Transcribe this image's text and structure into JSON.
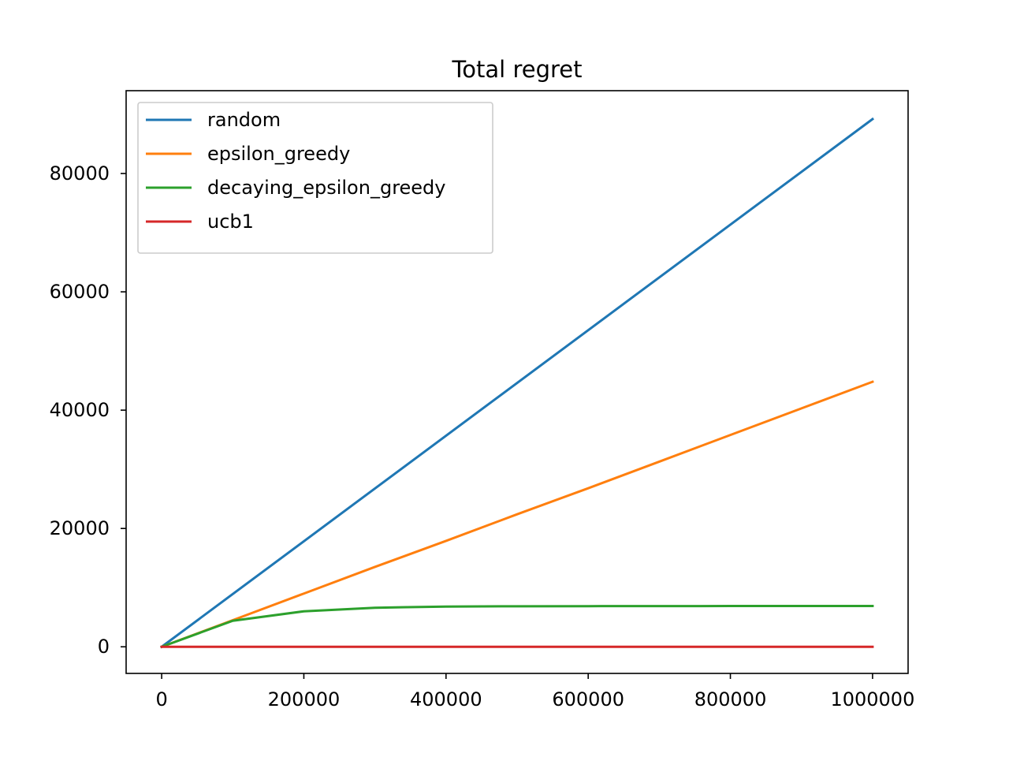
{
  "chart_data": {
    "type": "line",
    "title": "Total regret",
    "xlabel": "",
    "ylabel": "",
    "xlim": [
      -50000,
      1050000
    ],
    "ylim": [
      -4500,
      94000
    ],
    "xticks": [
      0,
      200000,
      400000,
      600000,
      800000,
      1000000
    ],
    "xtick_labels": [
      "0",
      "200000",
      "400000",
      "600000",
      "800000",
      "1000000"
    ],
    "yticks": [
      0,
      20000,
      40000,
      60000,
      80000
    ],
    "ytick_labels": [
      "0",
      "20000",
      "40000",
      "60000",
      "80000"
    ],
    "grid": false,
    "legend_position": "top-left",
    "series": [
      {
        "name": "random",
        "color": "#1f77b4",
        "x": [
          0,
          1000000
        ],
        "y": [
          0,
          89200
        ]
      },
      {
        "name": "epsilon_greedy",
        "color": "#ff7f0e",
        "x": [
          0,
          100000,
          200000,
          300000,
          400000,
          500000,
          600000,
          700000,
          800000,
          900000,
          1000000
        ],
        "y": [
          0,
          4500,
          9000,
          13500,
          17900,
          22400,
          26800,
          31300,
          35800,
          40300,
          44800
        ]
      },
      {
        "name": "decaying_epsilon_greedy",
        "color": "#2ca02c",
        "x": [
          0,
          100000,
          200000,
          300000,
          400000,
          500000,
          600000,
          700000,
          800000,
          900000,
          1000000
        ],
        "y": [
          0,
          4400,
          6000,
          6600,
          6800,
          6850,
          6870,
          6880,
          6890,
          6895,
          6900
        ]
      },
      {
        "name": "ucb1",
        "color": "#d62728",
        "x": [
          0,
          1000000
        ],
        "y": [
          0,
          0
        ]
      }
    ]
  }
}
